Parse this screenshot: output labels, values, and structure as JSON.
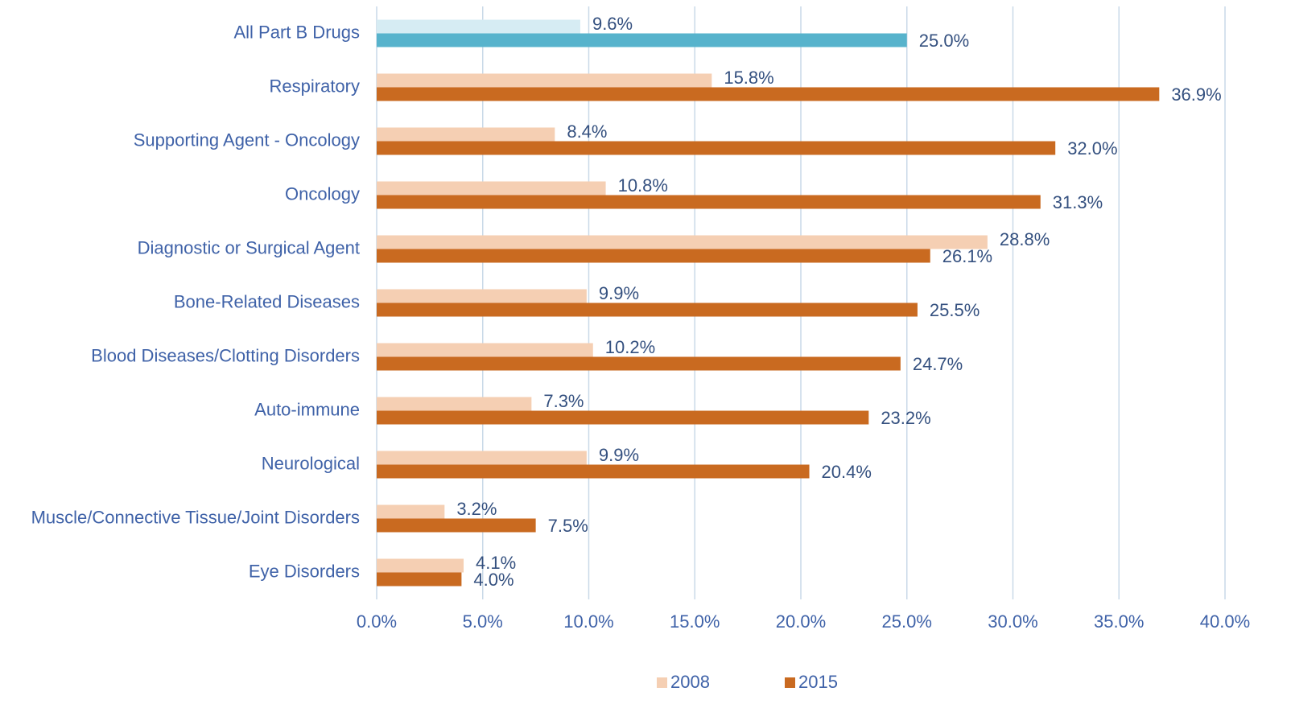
{
  "chart_data": {
    "type": "bar",
    "orientation": "horizontal",
    "categories": [
      "All Part B Drugs",
      "Respiratory",
      "Supporting Agent - Oncology",
      "Oncology",
      "Diagnostic or Surgical Agent",
      "Bone-Related Diseases",
      "Blood Diseases/Clotting Disorders",
      "Auto-immune",
      "Neurological",
      "Muscle/Connective Tissue/Joint Disorders",
      "Eye Disorders"
    ],
    "series": [
      {
        "name": "2008",
        "color": "#f5cfb3",
        "colors": [
          "#d6ecf3",
          "#f5cfb3",
          "#f5cfb3",
          "#f5cfb3",
          "#f5cfb3",
          "#f5cfb3",
          "#f5cfb3",
          "#f5cfb3",
          "#f5cfb3",
          "#f5cfb3",
          "#f5cfb3"
        ],
        "values": [
          9.6,
          15.8,
          8.4,
          10.8,
          28.8,
          9.9,
          10.2,
          7.3,
          9.9,
          3.2,
          4.1
        ],
        "value_labels": [
          "9.6%",
          "15.8%",
          "8.4%",
          "10.8%",
          "28.8%",
          "9.9%",
          "10.2%",
          "7.3%",
          "9.9%",
          "3.2%",
          "4.1%"
        ]
      },
      {
        "name": "2015",
        "color": "#c96a20",
        "colors": [
          "#57b3cc",
          "#c96a20",
          "#c96a20",
          "#c96a20",
          "#c96a20",
          "#c96a20",
          "#c96a20",
          "#c96a20",
          "#c96a20",
          "#c96a20",
          "#c96a20"
        ],
        "values": [
          25.0,
          36.9,
          32.0,
          31.3,
          26.1,
          25.5,
          24.7,
          23.2,
          20.4,
          7.5,
          4.0
        ],
        "value_labels": [
          "25.0%",
          "36.9%",
          "32.0%",
          "31.3%",
          "26.1%",
          "25.5%",
          "24.7%",
          "23.2%",
          "20.4%",
          "7.5%",
          "4.0%"
        ]
      }
    ],
    "xlim": [
      0,
      40
    ],
    "xticks": [
      {
        "value": 0,
        "label": "0.0%"
      },
      {
        "value": 5,
        "label": "5.0%"
      },
      {
        "value": 10,
        "label": "10.0%"
      },
      {
        "value": 15,
        "label": "15.0%"
      },
      {
        "value": 20,
        "label": "20.0%"
      },
      {
        "value": 25,
        "label": "25.0%"
      },
      {
        "value": 30,
        "label": "30.0%"
      },
      {
        "value": 35,
        "label": "35.0%"
      },
      {
        "value": 40,
        "label": "40.0%"
      }
    ],
    "grid": true,
    "legend": "bottom"
  }
}
